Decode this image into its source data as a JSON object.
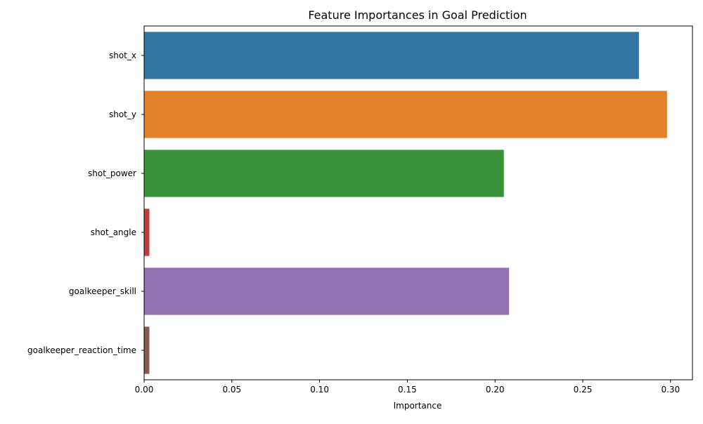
{
  "chart_data": {
    "type": "bar",
    "orientation": "horizontal",
    "title": "Feature Importances in Goal Prediction",
    "xlabel": "Importance",
    "ylabel": "",
    "xlim": [
      0,
      0.3125
    ],
    "xticks": [
      "0.00",
      "0.05",
      "0.10",
      "0.15",
      "0.20",
      "0.25",
      "0.30"
    ],
    "tick_values": [
      0,
      0.05,
      0.1,
      0.15,
      0.2,
      0.25,
      0.3
    ],
    "grid": false,
    "legend": "none",
    "categories": [
      "shot_x",
      "shot_y",
      "shot_power",
      "shot_angle",
      "goalkeeper_skill",
      "goalkeeper_reaction_time"
    ],
    "values": [
      0.282,
      0.298,
      0.205,
      0.003,
      0.208,
      0.003
    ],
    "colors": [
      "#3274a1",
      "#e1812c",
      "#3a923a",
      "#c03d3e",
      "#9372b2",
      "#845b53"
    ]
  }
}
